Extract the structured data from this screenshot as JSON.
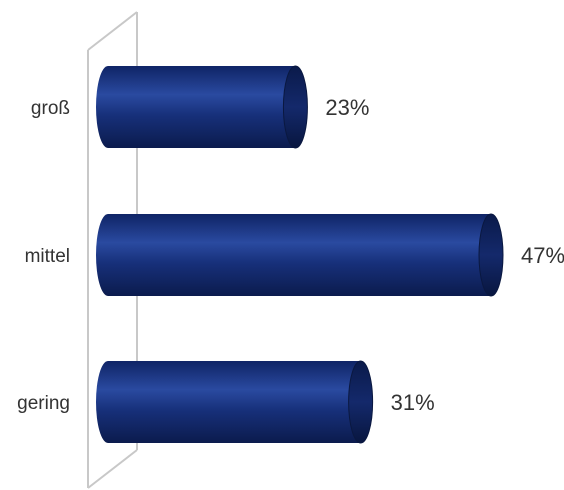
{
  "chart_data": {
    "type": "bar",
    "orientation": "horizontal",
    "style": "3d-cylinder",
    "categories": [
      "groß",
      "mittel",
      "gering"
    ],
    "values": [
      23,
      47,
      31
    ],
    "value_labels": [
      "23%",
      "47%",
      "31%"
    ],
    "unit": "%",
    "xlim": [
      0,
      47
    ],
    "title": "",
    "xlabel": "",
    "ylabel": "",
    "grid": false,
    "legend": "none",
    "colors": {
      "bar_body": "#17307a",
      "bar_highlight": "#2a4aa0",
      "bar_end_cap": "#0d1f55",
      "axis_wall": "#c8c8c8",
      "text": "#333333"
    }
  }
}
